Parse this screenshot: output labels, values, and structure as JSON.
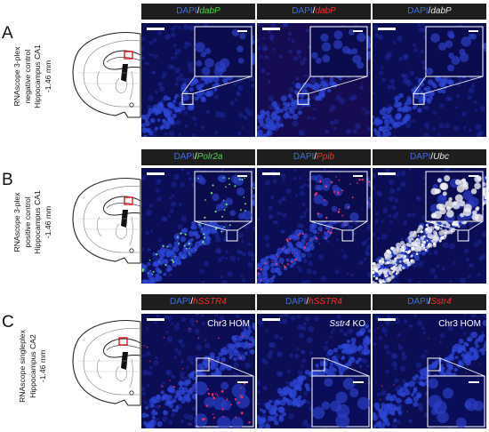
{
  "rows": [
    {
      "letter": "A",
      "label_lines": [
        "RNAscope 3-plex",
        "negative control",
        "Hippocampus CA1",
        "-1.46 mm"
      ],
      "headers": [
        {
          "dapi": "DAPI",
          "slash": "/",
          "gene": "dabP",
          "gene_color": "#4cd64c"
        },
        {
          "dapi": "DAPI",
          "slash": "/",
          "gene": "dabP",
          "gene_color": "#ff2a2a"
        },
        {
          "dapi": "DAPI",
          "slash": "/",
          "gene": "dabP",
          "gene_color": "#eaeaea"
        }
      ]
    },
    {
      "letter": "B",
      "label_lines": [
        "RNAscope 3-plex",
        "positive control",
        "Hippocampus CA1",
        "-1.46 mm"
      ],
      "headers": [
        {
          "dapi": "DAPI",
          "slash": "/",
          "gene": "Polr2a",
          "gene_color": "#4cd64c"
        },
        {
          "dapi": "DAPI",
          "slash": "/",
          "gene": "Ppib",
          "gene_color": "#ff2a2a"
        },
        {
          "dapi": "DAPI",
          "slash": "/",
          "gene": "Ubc",
          "gene_color": "#eaeaea"
        }
      ]
    },
    {
      "letter": "C",
      "label_lines": [
        "RNAscope singleplex",
        "Hippocampus CA2",
        "-1.46 mm"
      ],
      "headers": [
        {
          "dapi": "DAPI",
          "slash": "/",
          "gene": "hSSTR4",
          "gene_color": "#ff2a2a"
        },
        {
          "dapi": "DAPI",
          "slash": "/",
          "gene": "hSSTR4",
          "gene_color": "#ff2a2a"
        },
        {
          "dapi": "DAPI",
          "slash": "/",
          "gene": "Sstr4",
          "gene_color": "#ff2a2a"
        }
      ],
      "overlays": [
        {
          "italic": "",
          "text": "Chr3 HOM"
        },
        {
          "italic": "Sstr4",
          "text": " KO"
        },
        {
          "italic": "",
          "text": "Chr3 HOM"
        }
      ]
    }
  ],
  "colors": {
    "dapi": "#3d6ee0",
    "header_bg": "#1e1e1e",
    "tissue": "#0c0f5c",
    "roi": "#e01818"
  }
}
